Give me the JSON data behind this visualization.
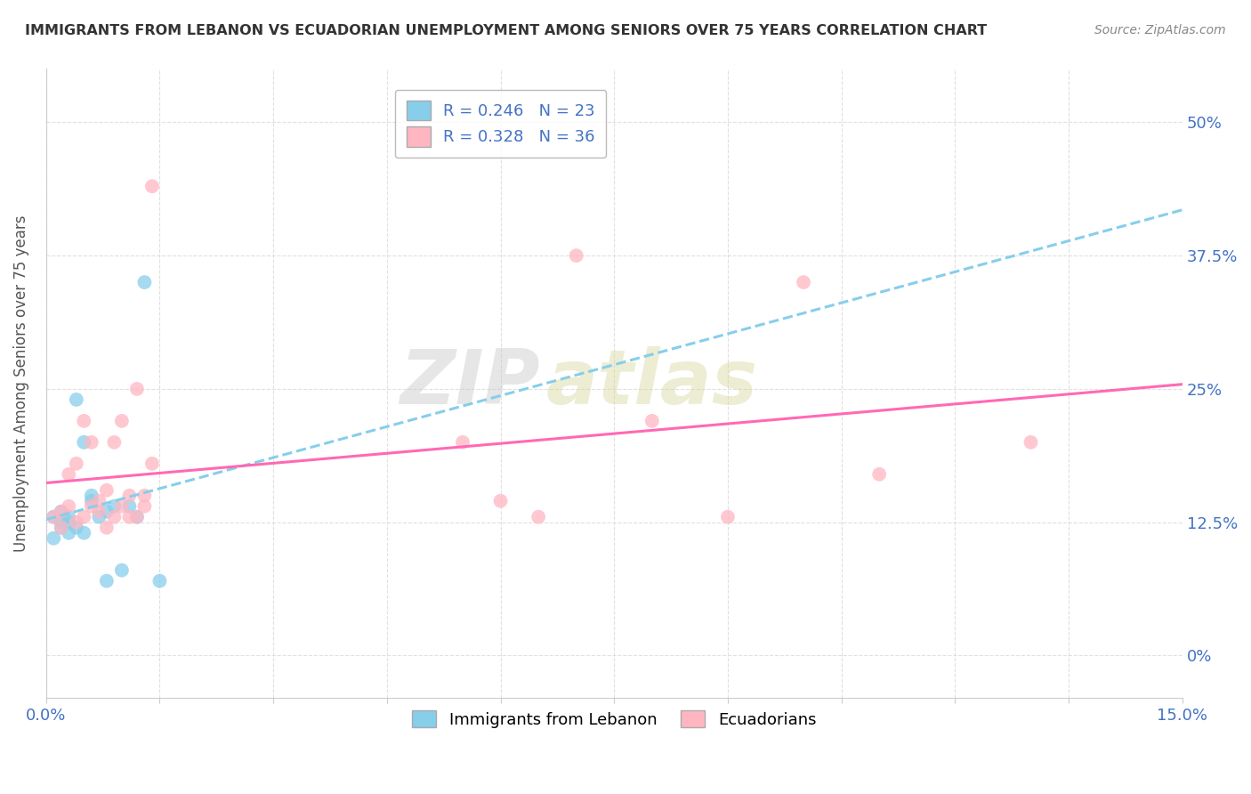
{
  "title": "IMMIGRANTS FROM LEBANON VS ECUADORIAN UNEMPLOYMENT AMONG SENIORS OVER 75 YEARS CORRELATION CHART",
  "source": "Source: ZipAtlas.com",
  "ylabel": "Unemployment Among Seniors over 75 years",
  "ylabel_ticks": [
    "0%",
    "12.5%",
    "25%",
    "37.5%",
    "50%"
  ],
  "ylabel_values": [
    0.0,
    0.125,
    0.25,
    0.375,
    0.5
  ],
  "xmin": 0.0,
  "xmax": 0.15,
  "ymin": -0.04,
  "ymax": 0.55,
  "watermark_text": "ZIP",
  "watermark_text2": "atlas",
  "background_color": "#ffffff",
  "grid_color": "#e0e0e0",
  "series": [
    {
      "name": "Immigrants from Lebanon",
      "R": 0.246,
      "N": 23,
      "scatter_color": "#87CEEB",
      "line_color": "#87CEEB",
      "line_style": "--",
      "x": [
        0.001,
        0.001,
        0.002,
        0.002,
        0.002,
        0.003,
        0.003,
        0.003,
        0.004,
        0.004,
        0.005,
        0.005,
        0.006,
        0.006,
        0.007,
        0.008,
        0.008,
        0.009,
        0.01,
        0.011,
        0.012,
        0.013,
        0.015
      ],
      "y": [
        0.13,
        0.11,
        0.135,
        0.125,
        0.12,
        0.13,
        0.125,
        0.115,
        0.12,
        0.24,
        0.115,
        0.2,
        0.15,
        0.145,
        0.13,
        0.135,
        0.07,
        0.14,
        0.08,
        0.14,
        0.13,
        0.35,
        0.07
      ]
    },
    {
      "name": "Ecuadorians",
      "R": 0.328,
      "N": 36,
      "scatter_color": "#FFB6C1",
      "line_color": "#FF69B4",
      "line_style": "-",
      "x": [
        0.001,
        0.002,
        0.002,
        0.003,
        0.003,
        0.004,
        0.004,
        0.005,
        0.005,
        0.006,
        0.006,
        0.007,
        0.007,
        0.008,
        0.008,
        0.009,
        0.009,
        0.01,
        0.01,
        0.011,
        0.011,
        0.012,
        0.012,
        0.013,
        0.013,
        0.014,
        0.014,
        0.055,
        0.06,
        0.065,
        0.07,
        0.08,
        0.09,
        0.1,
        0.11,
        0.13
      ],
      "y": [
        0.13,
        0.12,
        0.135,
        0.14,
        0.17,
        0.125,
        0.18,
        0.22,
        0.13,
        0.14,
        0.2,
        0.135,
        0.145,
        0.155,
        0.12,
        0.13,
        0.2,
        0.14,
        0.22,
        0.13,
        0.15,
        0.13,
        0.25,
        0.14,
        0.15,
        0.18,
        0.44,
        0.2,
        0.145,
        0.13,
        0.375,
        0.22,
        0.13,
        0.35,
        0.17,
        0.2
      ]
    }
  ]
}
